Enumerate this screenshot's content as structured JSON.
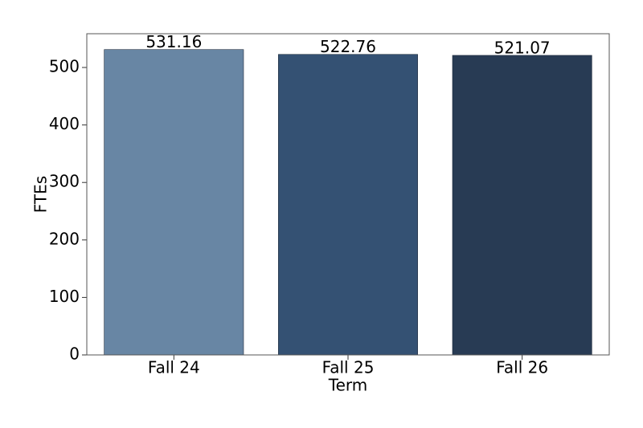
{
  "chart_data": {
    "type": "bar",
    "xlabel": "Term",
    "ylabel": "FTEs",
    "categories": [
      "Fall 24",
      "Fall 25",
      "Fall 26"
    ],
    "values": [
      531.16,
      522.76,
      521.07
    ],
    "colors": [
      "#6886a4",
      "#345173",
      "#283b54"
    ],
    "ylim": [
      0,
      558.7
    ],
    "yticks": [
      0,
      100,
      200,
      300,
      400,
      500
    ]
  }
}
